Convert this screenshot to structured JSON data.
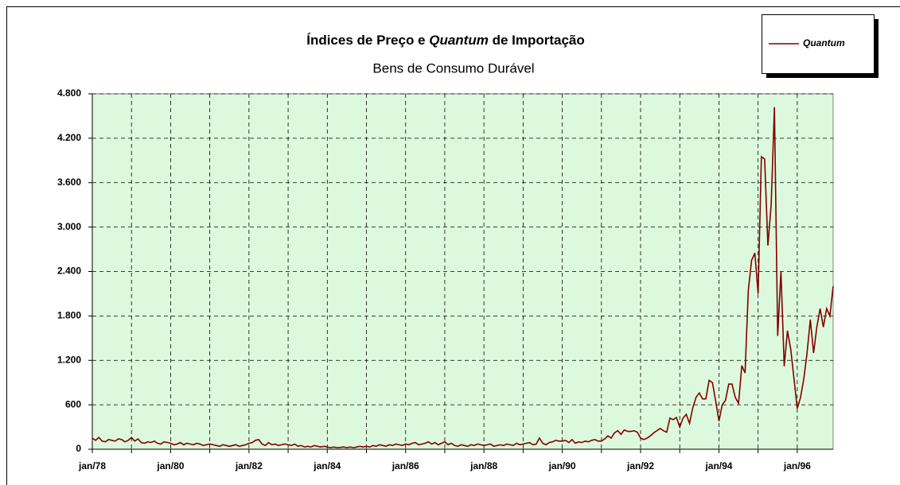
{
  "chart_data": {
    "type": "line",
    "title": [
      "Índices de Preço e ",
      "Quantum",
      " de Importação"
    ],
    "subtitle": "Bens de Consumo Durável",
    "categories": [
      "jan/78",
      null,
      null,
      null,
      null,
      null,
      null,
      null,
      null,
      null,
      null,
      null,
      null,
      null,
      null,
      null,
      null,
      null,
      null,
      null,
      null,
      null,
      null,
      null,
      "jan/80",
      null,
      null,
      null,
      null,
      null,
      null,
      null,
      null,
      null,
      null,
      null,
      null,
      null,
      null,
      null,
      null,
      null,
      null,
      null,
      null,
      null,
      null,
      null,
      "jan/82",
      null,
      null,
      null,
      null,
      null,
      null,
      null,
      null,
      null,
      null,
      null,
      null,
      null,
      null,
      null,
      null,
      null,
      null,
      null,
      null,
      null,
      null,
      null,
      "jan/84",
      null,
      null,
      null,
      null,
      null,
      null,
      null,
      null,
      null,
      null,
      null,
      null,
      null,
      null,
      null,
      null,
      null,
      null,
      null,
      null,
      null,
      null,
      null,
      "jan/86",
      null,
      null,
      null,
      null,
      null,
      null,
      null,
      null,
      null,
      null,
      null,
      null,
      null,
      null,
      null,
      null,
      null,
      null,
      null,
      null,
      null,
      null,
      null,
      "jan/88",
      null,
      null,
      null,
      null,
      null,
      null,
      null,
      null,
      null,
      null,
      null,
      null,
      null,
      null,
      null,
      null,
      null,
      null,
      null,
      null,
      null,
      null,
      null,
      "jan/90",
      null,
      null,
      null,
      null,
      null,
      null,
      null,
      null,
      null,
      null,
      null,
      null,
      null,
      null,
      null,
      null,
      null,
      null,
      null,
      null,
      null,
      null,
      null,
      "jan/92",
      null,
      null,
      null,
      null,
      null,
      null,
      null,
      null,
      null,
      null,
      null,
      null,
      null,
      null,
      null,
      null,
      null,
      null,
      null,
      null,
      null,
      null,
      null,
      "jan/94",
      null,
      null,
      null,
      null,
      null,
      null,
      null,
      null,
      null,
      null,
      null,
      null,
      null,
      null,
      null,
      null,
      null,
      null,
      null,
      null,
      null,
      null,
      null,
      "jan/96",
      null,
      null,
      null,
      null,
      null,
      null,
      null,
      null,
      null,
      null,
      null
    ],
    "series": [
      {
        "name": "Quantum",
        "color": "#800000",
        "values": [
          150,
          120,
          160,
          110,
          100,
          130,
          120,
          110,
          140,
          130,
          100,
          120,
          160,
          110,
          140,
          90,
          80,
          100,
          90,
          110,
          80,
          70,
          100,
          90,
          80,
          60,
          70,
          90,
          60,
          80,
          70,
          60,
          80,
          70,
          50,
          60,
          70,
          60,
          50,
          40,
          60,
          50,
          40,
          50,
          60,
          40,
          50,
          60,
          80,
          90,
          120,
          130,
          70,
          50,
          90,
          60,
          70,
          50,
          60,
          70,
          60,
          50,
          70,
          40,
          50,
          30,
          40,
          30,
          50,
          40,
          30,
          40,
          30,
          20,
          30,
          20,
          25,
          30,
          20,
          30,
          20,
          30,
          40,
          30,
          40,
          30,
          50,
          40,
          60,
          50,
          40,
          60,
          50,
          70,
          60,
          50,
          70,
          60,
          80,
          90,
          60,
          70,
          80,
          100,
          70,
          90,
          60,
          80,
          100,
          60,
          80,
          50,
          40,
          60,
          50,
          40,
          60,
          50,
          70,
          60,
          50,
          60,
          70,
          40,
          50,
          60,
          50,
          70,
          60,
          50,
          80,
          60,
          70,
          80,
          90,
          60,
          70,
          150,
          80,
          60,
          90,
          100,
          120,
          110,
          110,
          120,
          90,
          130,
          80,
          100,
          90,
          110,
          100,
          120,
          130,
          110,
          110,
          140,
          180,
          150,
          220,
          250,
          200,
          260,
          240,
          240,
          250,
          230,
          150,
          130,
          150,
          180,
          220,
          250,
          280,
          250,
          230,
          420,
          400,
          430,
          300,
          420,
          470,
          350,
          560,
          700,
          760,
          680,
          680,
          930,
          900,
          650,
          380,
          600,
          660,
          880,
          880,
          700,
          620,
          1130,
          1030,
          2150,
          2550,
          2650,
          2100,
          3950,
          3920,
          2750,
          3300,
          4620,
          1530,
          2400,
          1120,
          1600,
          1350,
          950,
          550,
          700,
          950,
          1300,
          1750,
          1300,
          1650,
          1900,
          1650,
          1900,
          1800,
          2200
        ]
      }
    ],
    "ylim": [
      0,
      4800
    ],
    "yticks": [
      0,
      600,
      {
        "value": 1200,
        "label": "1.200"
      },
      {
        "value": 1800,
        "label": "1.800"
      },
      {
        "value": 2400,
        "label": "2.400"
      },
      {
        "value": 3000,
        "label": "3.000"
      },
      {
        "value": 3600,
        "label": "3.600"
      },
      {
        "value": 4200,
        "label": "4.200"
      },
      {
        "value": 4800,
        "label": "4.800"
      }
    ],
    "grid": true,
    "background": "#ddf9dd",
    "legend": "top-right"
  }
}
